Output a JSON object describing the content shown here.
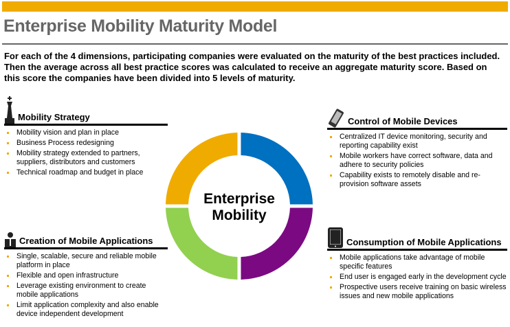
{
  "header": {
    "title": "Enterprise Mobility Maturity Model",
    "intro": "For each of the 4 dimensions, participating companies were evaluated on the maturity of the best practices included. Then the average across all best practice scores was calculated to receive an aggregate maturity score. Based on this score the companies have been divided into 5 levels of maturity.",
    "accent": "#F0AB00"
  },
  "center": {
    "line1": "Enterprise",
    "line2": "Mobility"
  },
  "ring_colors": {
    "top_left": "#F0AB00",
    "top_right": "#0070C0",
    "bottom_right": "#7B0A82",
    "bottom_left": "#92D050"
  },
  "sections": [
    {
      "title": "Mobility Strategy",
      "icon": "chess-king-icon",
      "items": [
        "Mobility vision and plan in place",
        "Business Process redesigning",
        "Mobility strategy extended to partners, suppliers, distributors and customers",
        "Technical roadmap and budget in place"
      ]
    },
    {
      "title": "Control of Mobile Devices",
      "icon": "smartphone-icon",
      "items": [
        "Centralized IT device monitoring, security and reporting capability exist",
        "Mobile workers have correct software, data and adhere to security policies",
        "Capability exists to remotely disable and re-provision software assets"
      ]
    },
    {
      "title": "Creation of Mobile Applications",
      "icon": "people-icon",
      "items": [
        "Single, scalable, secure and reliable mobile platform in place",
        "Flexible and open infrastructure",
        "Leverage existing environment to create mobile applications",
        "Limit application complexity and also enable device independent development"
      ]
    },
    {
      "title": "Consumption of Mobile Applications",
      "icon": "tablet-icon",
      "items": [
        "Mobile applications take advantage of mobile specific features",
        "End user is engaged early in the development cycle",
        "Prospective users receive training on basic wireless issues and new mobile applications"
      ]
    }
  ]
}
